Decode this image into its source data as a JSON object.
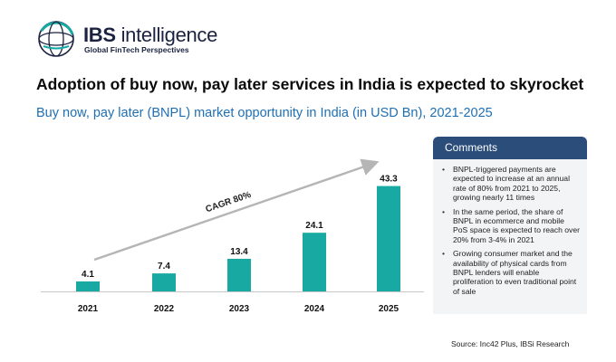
{
  "header": {
    "brand_bold": "IBS",
    "brand_rest": " intelligence",
    "tagline": "Global FinTech Perspectives",
    "title": "Adoption of buy now, pay later services in India is expected to skyrocket",
    "subtitle": "Buy now, pay later (BNPL) market opportunity in India (in USD Bn), 2021-2025"
  },
  "chart_data": {
    "type": "bar",
    "categories": [
      "2021",
      "2022",
      "2023",
      "2024",
      "2025"
    ],
    "values": [
      4.1,
      7.4,
      13.4,
      24.1,
      43.3
    ],
    "value_labels": [
      "4.1",
      "7.4",
      "13.4",
      "24.1",
      "43.3"
    ],
    "annotation": "CAGR 80%",
    "bar_color": "#18aaa2",
    "ylim": [
      0,
      45
    ],
    "grid": false,
    "title": "",
    "xlabel": "",
    "ylabel": ""
  },
  "comments": {
    "title": "Comments",
    "items": [
      "BNPL-triggered payments are expected to increase at an annual rate of 80% from 2021 to 2025, growing nearly 11 times",
      "In the same period, the share of BNPL in ecommerce and mobile PoS space is expected to reach over 20% from 3-4% in 2021",
      "Growing consumer market and the availability of physical cards from BNPL lenders will enable proliferation to even traditional point of sale"
    ]
  },
  "source": "Source: Inc42 Plus, IBSi Research",
  "colors": {
    "accent_blue": "#1f6fb3",
    "comments_header": "#2a4d7a",
    "comments_bg": "#f3f4f6",
    "logo_teal": "#17a9a4",
    "logo_navy": "#1a2240"
  }
}
